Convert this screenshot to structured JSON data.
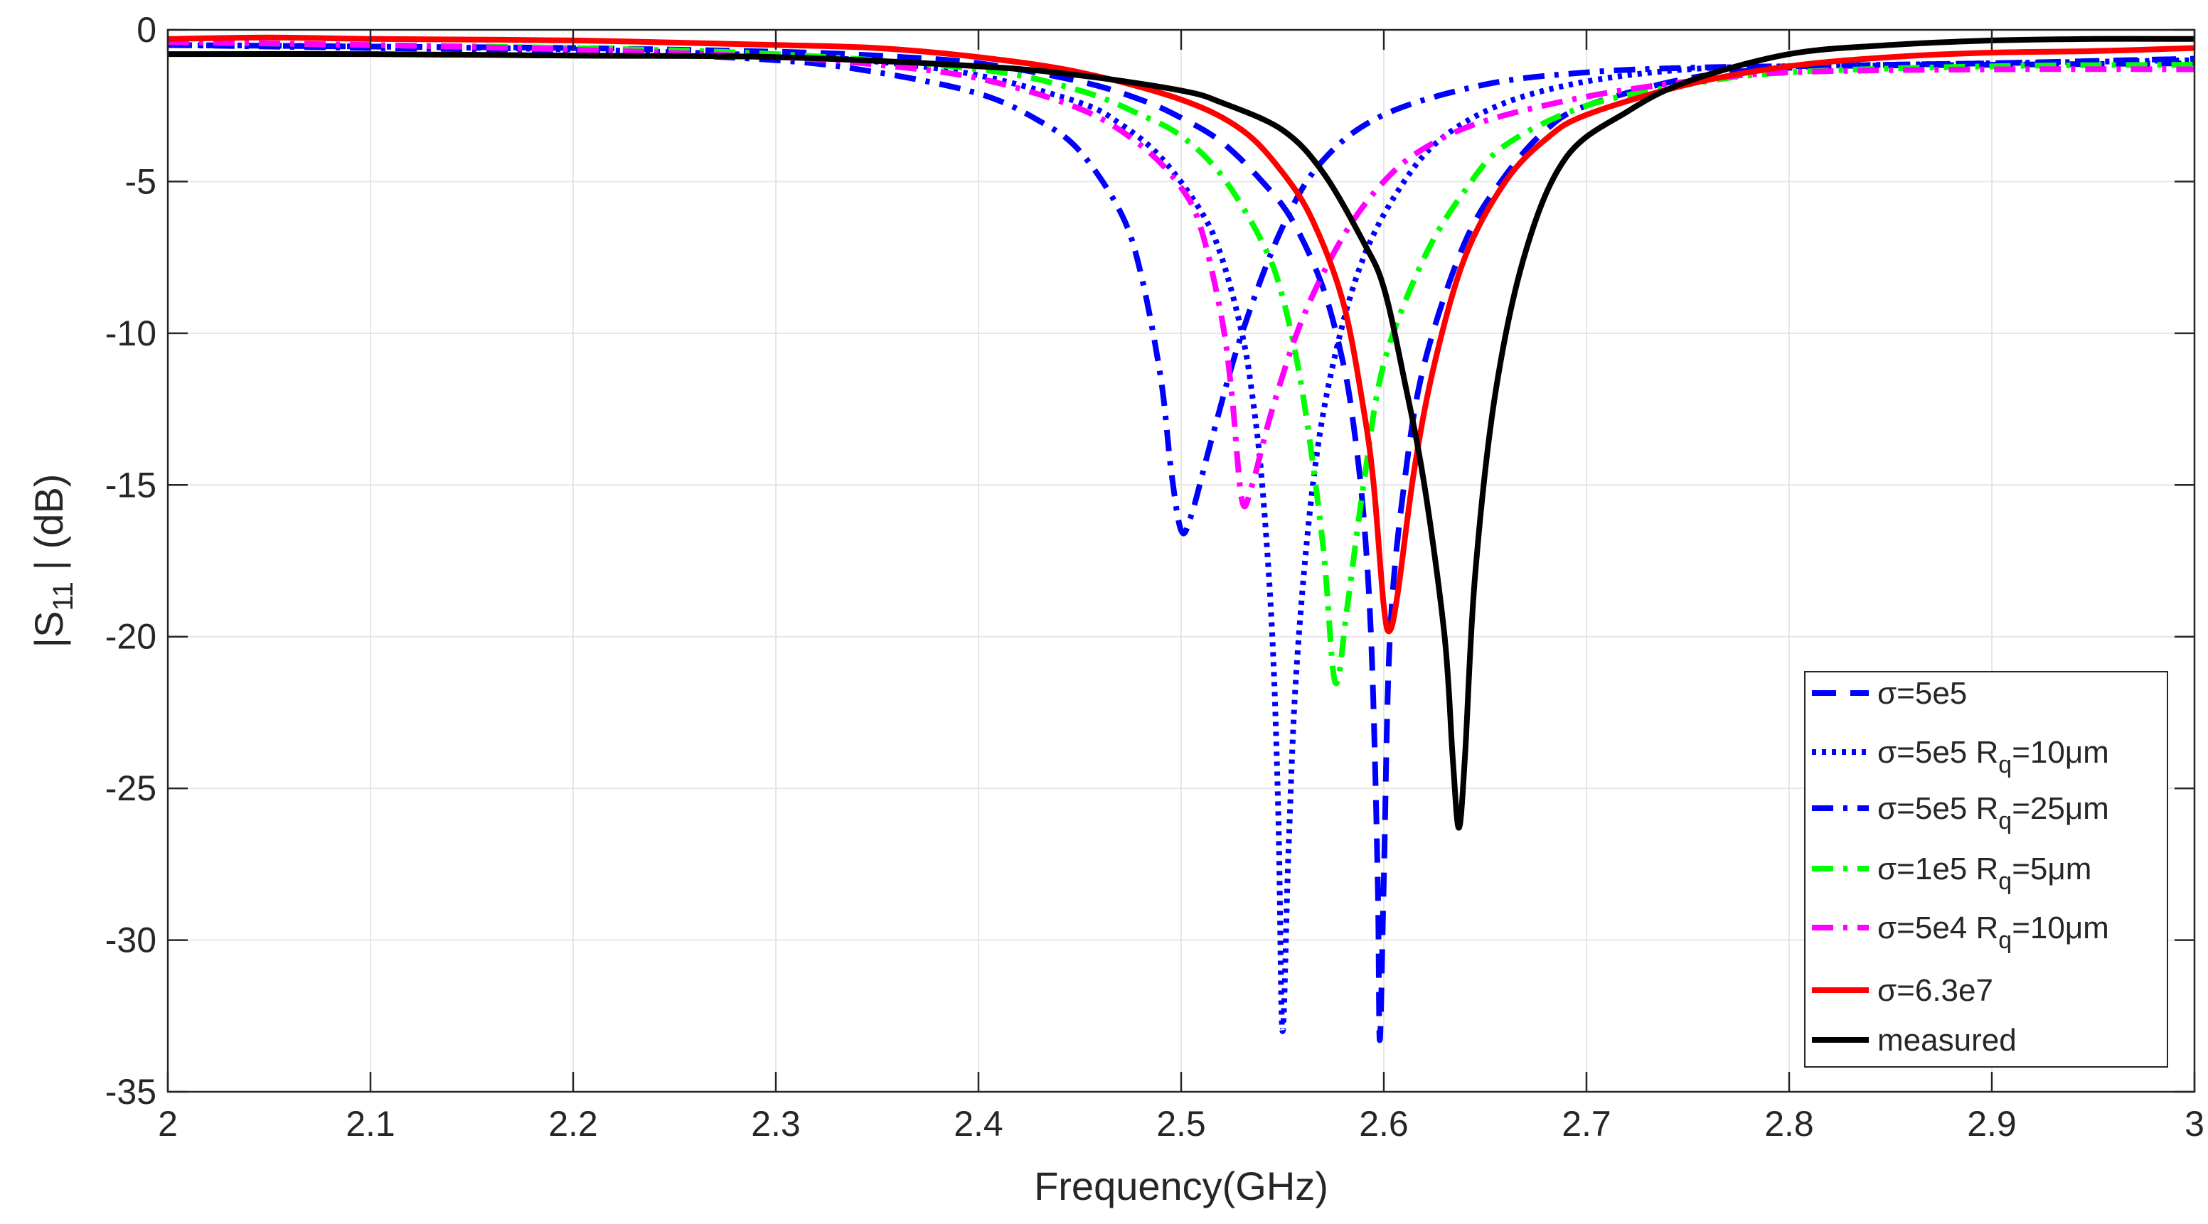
{
  "chart_data": {
    "type": "line",
    "title": "",
    "xlabel": "Frequency(GHz)",
    "ylabel": {
      "prefix": "|S",
      "sub": "11",
      "suffix": " | (dB)"
    },
    "xlim": [
      2,
      3
    ],
    "ylim": [
      -35,
      0
    ],
    "xticks": [
      2,
      2.1,
      2.2,
      2.3,
      2.4,
      2.5,
      2.6,
      2.7,
      2.8,
      2.9,
      3
    ],
    "xtick_labels": [
      "2",
      "2.1",
      "2.2",
      "2.3",
      "2.4",
      "2.5",
      "2.6",
      "2.7",
      "2.8",
      "2.9",
      "3"
    ],
    "yticks": [
      0,
      -5,
      -10,
      -15,
      -20,
      -25,
      -30,
      -35
    ],
    "ytick_labels": [
      "0",
      "-5",
      "-10",
      "-15",
      "-20",
      "-25",
      "-30",
      "-35"
    ],
    "grid": true,
    "legend_position": "bottom-right",
    "series": [
      {
        "label": {
          "main": "σ=5e5",
          "sub": "",
          "tail": ""
        },
        "color": "#0000ff",
        "dash": "dashed",
        "points": [
          [
            2.0,
            -0.5
          ],
          [
            2.1,
            -0.55
          ],
          [
            2.2,
            -0.6
          ],
          [
            2.3,
            -0.72
          ],
          [
            2.35,
            -0.85
          ],
          [
            2.4,
            -1.1
          ],
          [
            2.45,
            -1.7
          ],
          [
            2.48,
            -2.3
          ],
          [
            2.5,
            -2.9
          ],
          [
            2.52,
            -3.7
          ],
          [
            2.54,
            -5.0
          ],
          [
            2.555,
            -6.3
          ],
          [
            2.57,
            -8.5
          ],
          [
            2.58,
            -11.0
          ],
          [
            2.585,
            -13.0
          ],
          [
            2.59,
            -16.0
          ],
          [
            2.594,
            -20.5
          ],
          [
            2.597,
            -28.0
          ],
          [
            2.598,
            -33.3
          ],
          [
            2.6,
            -28.0
          ],
          [
            2.603,
            -20.0
          ],
          [
            2.61,
            -15.0
          ],
          [
            2.62,
            -11.0
          ],
          [
            2.64,
            -7.0
          ],
          [
            2.66,
            -4.8
          ],
          [
            2.68,
            -3.3
          ],
          [
            2.7,
            -2.5
          ],
          [
            2.75,
            -1.6
          ],
          [
            2.8,
            -1.25
          ],
          [
            2.85,
            -1.15
          ],
          [
            2.9,
            -1.1
          ],
          [
            3.0,
            -0.95
          ]
        ]
      },
      {
        "label": {
          "main": "σ=5e5 R",
          "sub": "q",
          "tail": "=10μm"
        },
        "color": "#0000ff",
        "dash": "dotted",
        "points": [
          [
            2.0,
            -0.5
          ],
          [
            2.1,
            -0.55
          ],
          [
            2.2,
            -0.65
          ],
          [
            2.3,
            -0.85
          ],
          [
            2.35,
            -1.05
          ],
          [
            2.4,
            -1.5
          ],
          [
            2.45,
            -2.4
          ],
          [
            2.47,
            -3.1
          ],
          [
            2.49,
            -4.2
          ],
          [
            2.51,
            -6.0
          ],
          [
            2.52,
            -7.5
          ],
          [
            2.53,
            -10.0
          ],
          [
            2.535,
            -12.0
          ],
          [
            2.54,
            -15.0
          ],
          [
            2.545,
            -20.0
          ],
          [
            2.548,
            -26.0
          ],
          [
            2.55,
            -33.0
          ],
          [
            2.553,
            -27.0
          ],
          [
            2.557,
            -21.0
          ],
          [
            2.565,
            -15.0
          ],
          [
            2.575,
            -11.0
          ],
          [
            2.59,
            -7.5
          ],
          [
            2.61,
            -5.0
          ],
          [
            2.63,
            -3.5
          ],
          [
            2.66,
            -2.4
          ],
          [
            2.7,
            -1.7
          ],
          [
            2.75,
            -1.3
          ],
          [
            2.8,
            -1.2
          ],
          [
            2.9,
            -1.1
          ],
          [
            3.0,
            -1.0
          ]
        ]
      },
      {
        "label": {
          "main": "σ=5e5 R",
          "sub": "q",
          "tail": "=25μm"
        },
        "color": "#0000ff",
        "dash": "dashdot",
        "points": [
          [
            2.0,
            -0.5
          ],
          [
            2.1,
            -0.6
          ],
          [
            2.2,
            -0.7
          ],
          [
            2.3,
            -1.0
          ],
          [
            2.35,
            -1.4
          ],
          [
            2.4,
            -2.1
          ],
          [
            2.43,
            -3.0
          ],
          [
            2.45,
            -4.0
          ],
          [
            2.47,
            -6.0
          ],
          [
            2.48,
            -8.0
          ],
          [
            2.49,
            -11.5
          ],
          [
            2.495,
            -14.5
          ],
          [
            2.5,
            -16.5
          ],
          [
            2.505,
            -16.0
          ],
          [
            2.515,
            -13.5
          ],
          [
            2.53,
            -10.0
          ],
          [
            2.55,
            -6.5
          ],
          [
            2.57,
            -4.3
          ],
          [
            2.6,
            -2.8
          ],
          [
            2.65,
            -1.8
          ],
          [
            2.7,
            -1.4
          ],
          [
            2.75,
            -1.25
          ],
          [
            2.8,
            -1.2
          ],
          [
            2.9,
            -1.15
          ],
          [
            3.0,
            -1.1
          ]
        ]
      },
      {
        "label": {
          "main": "σ=1e5 R",
          "sub": "q",
          "tail": "=5μm"
        },
        "color": "#00ff00",
        "dash": "dashdot",
        "points": [
          [
            2.0,
            -0.4
          ],
          [
            2.1,
            -0.5
          ],
          [
            2.2,
            -0.6
          ],
          [
            2.3,
            -0.8
          ],
          [
            2.4,
            -1.3
          ],
          [
            2.45,
            -2.0
          ],
          [
            2.48,
            -2.8
          ],
          [
            2.5,
            -3.5
          ],
          [
            2.52,
            -4.8
          ],
          [
            2.54,
            -7.0
          ],
          [
            2.55,
            -8.8
          ],
          [
            2.56,
            -12.0
          ],
          [
            2.57,
            -17.0
          ],
          [
            2.576,
            -21.5
          ],
          [
            2.582,
            -19.0
          ],
          [
            2.59,
            -15.0
          ],
          [
            2.6,
            -11.0
          ],
          [
            2.62,
            -7.5
          ],
          [
            2.64,
            -5.3
          ],
          [
            2.66,
            -3.8
          ],
          [
            2.7,
            -2.5
          ],
          [
            2.75,
            -1.8
          ],
          [
            2.8,
            -1.4
          ],
          [
            2.9,
            -1.2
          ],
          [
            3.0,
            -1.15
          ]
        ]
      },
      {
        "label": {
          "main": "σ=5e4 R",
          "sub": "q",
          "tail": "=10μm"
        },
        "color": "#ff00ff",
        "dash": "dashdot",
        "points": [
          [
            2.0,
            -0.4
          ],
          [
            2.1,
            -0.5
          ],
          [
            2.2,
            -0.65
          ],
          [
            2.3,
            -0.9
          ],
          [
            2.35,
            -1.15
          ],
          [
            2.4,
            -1.6
          ],
          [
            2.45,
            -2.6
          ],
          [
            2.48,
            -3.8
          ],
          [
            2.5,
            -5.2
          ],
          [
            2.51,
            -6.6
          ],
          [
            2.52,
            -9.5
          ],
          [
            2.525,
            -12.0
          ],
          [
            2.53,
            -15.5
          ],
          [
            2.535,
            -15.0
          ],
          [
            2.545,
            -12.5
          ],
          [
            2.56,
            -9.5
          ],
          [
            2.58,
            -6.8
          ],
          [
            2.6,
            -5.0
          ],
          [
            2.62,
            -3.9
          ],
          [
            2.65,
            -3.0
          ],
          [
            2.7,
            -2.2
          ],
          [
            2.75,
            -1.7
          ],
          [
            2.8,
            -1.4
          ],
          [
            2.9,
            -1.3
          ],
          [
            3.0,
            -1.3
          ]
        ]
      },
      {
        "label": {
          "main": "σ=6.3e7",
          "sub": "",
          "tail": ""
        },
        "color": "#ff0000",
        "dash": "solid",
        "points": [
          [
            2.0,
            -0.3
          ],
          [
            2.05,
            -0.25
          ],
          [
            2.1,
            -0.3
          ],
          [
            2.2,
            -0.35
          ],
          [
            2.3,
            -0.5
          ],
          [
            2.35,
            -0.6
          ],
          [
            2.4,
            -0.9
          ],
          [
            2.45,
            -1.4
          ],
          [
            2.5,
            -2.3
          ],
          [
            2.53,
            -3.3
          ],
          [
            2.55,
            -4.7
          ],
          [
            2.565,
            -6.3
          ],
          [
            2.58,
            -9.0
          ],
          [
            2.59,
            -12.5
          ],
          [
            2.595,
            -15.0
          ],
          [
            2.6,
            -19.0
          ],
          [
            2.603,
            -19.8
          ],
          [
            2.607,
            -18.5
          ],
          [
            2.615,
            -14.5
          ],
          [
            2.625,
            -11.0
          ],
          [
            2.64,
            -7.5
          ],
          [
            2.66,
            -5.0
          ],
          [
            2.68,
            -3.6
          ],
          [
            2.7,
            -2.8
          ],
          [
            2.75,
            -1.8
          ],
          [
            2.8,
            -1.2
          ],
          [
            2.85,
            -0.9
          ],
          [
            2.9,
            -0.75
          ],
          [
            2.95,
            -0.7
          ],
          [
            3.0,
            -0.6
          ]
        ]
      },
      {
        "label": {
          "main": "measured",
          "sub": "",
          "tail": ""
        },
        "color": "#000000",
        "dash": "solid",
        "points": [
          [
            2.0,
            -0.8
          ],
          [
            2.1,
            -0.8
          ],
          [
            2.2,
            -0.85
          ],
          [
            2.3,
            -0.9
          ],
          [
            2.4,
            -1.2
          ],
          [
            2.45,
            -1.5
          ],
          [
            2.5,
            -2.0
          ],
          [
            2.52,
            -2.4
          ],
          [
            2.55,
            -3.3
          ],
          [
            2.57,
            -4.7
          ],
          [
            2.59,
            -7.0
          ],
          [
            2.6,
            -8.5
          ],
          [
            2.61,
            -11.5
          ],
          [
            2.62,
            -15.0
          ],
          [
            2.63,
            -20.0
          ],
          [
            2.634,
            -24.0
          ],
          [
            2.637,
            -26.3
          ],
          [
            2.64,
            -24.0
          ],
          [
            2.645,
            -18.0
          ],
          [
            2.655,
            -12.0
          ],
          [
            2.67,
            -7.3
          ],
          [
            2.69,
            -4.2
          ],
          [
            2.72,
            -2.7
          ],
          [
            2.75,
            -1.7
          ],
          [
            2.8,
            -0.8
          ],
          [
            2.85,
            -0.5
          ],
          [
            2.9,
            -0.35
          ],
          [
            2.95,
            -0.3
          ],
          [
            3.0,
            -0.3
          ]
        ]
      }
    ]
  }
}
